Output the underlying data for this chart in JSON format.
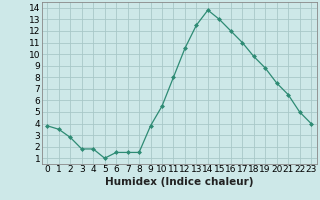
{
  "x": [
    0,
    1,
    2,
    3,
    4,
    5,
    6,
    7,
    8,
    9,
    10,
    11,
    12,
    13,
    14,
    15,
    16,
    17,
    18,
    19,
    20,
    21,
    22,
    23
  ],
  "y": [
    3.8,
    3.5,
    2.8,
    1.8,
    1.8,
    1.0,
    1.5,
    1.5,
    1.5,
    3.8,
    5.5,
    8.0,
    10.5,
    12.5,
    13.8,
    13.0,
    12.0,
    11.0,
    9.8,
    8.8,
    7.5,
    6.5,
    5.0,
    4.0
  ],
  "line_color": "#2e8b74",
  "marker": "D",
  "marker_size": 2,
  "bg_color": "#cde8e8",
  "grid_color": "#a8c8c8",
  "xlabel": "Humidex (Indice chaleur)",
  "xlim": [
    -0.5,
    23.5
  ],
  "ylim": [
    0.5,
    14.5
  ],
  "xticks": [
    0,
    1,
    2,
    3,
    4,
    5,
    6,
    7,
    8,
    9,
    10,
    11,
    12,
    13,
    14,
    15,
    16,
    17,
    18,
    19,
    20,
    21,
    22,
    23
  ],
  "yticks": [
    1,
    2,
    3,
    4,
    5,
    6,
    7,
    8,
    9,
    10,
    11,
    12,
    13,
    14
  ],
  "tick_fontsize": 6.5,
  "label_fontsize": 7.5,
  "spine_color": "#888888"
}
